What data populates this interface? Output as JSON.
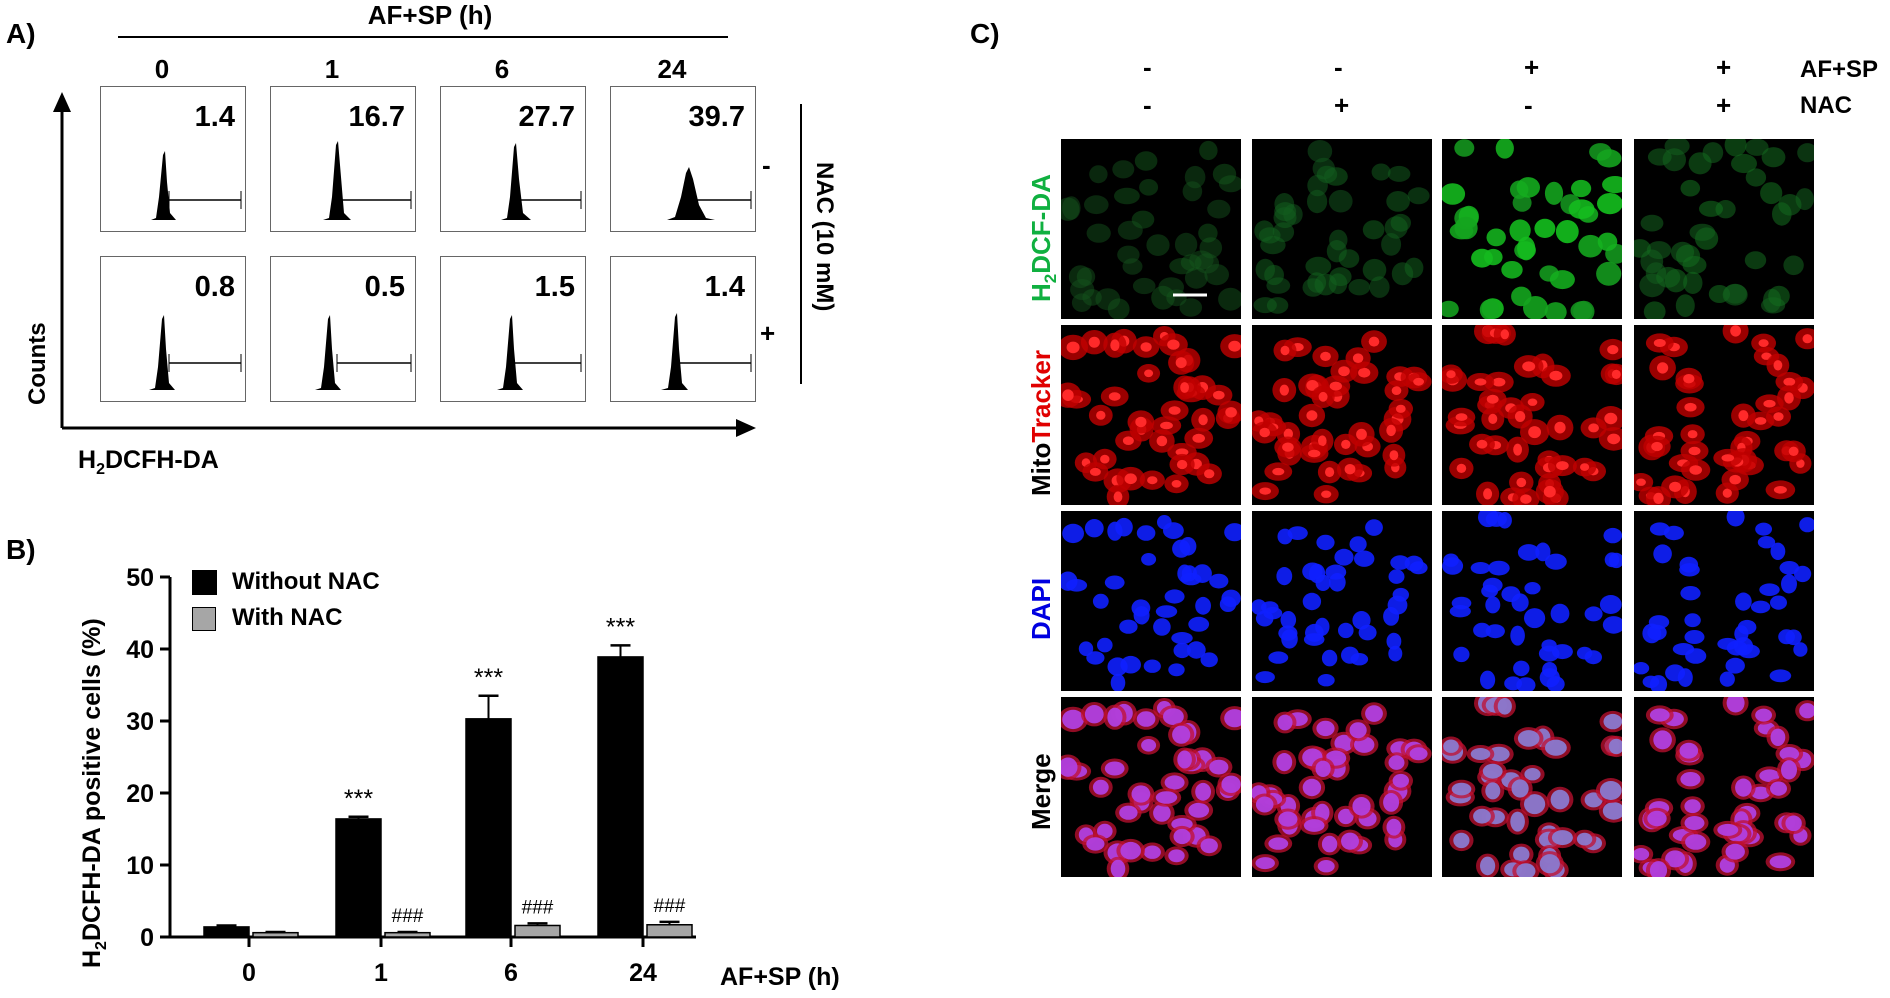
{
  "panel_a": {
    "label": "A)",
    "header": "AF+SP (h)",
    "times": [
      "0",
      "1",
      "6",
      "24"
    ],
    "y_axis_label": "Counts",
    "x_axis_label_main": "H",
    "x_axis_label_sub": "2",
    "x_axis_label_rest": "DCFH-DA",
    "row_signs": [
      "-",
      "+"
    ],
    "side_label": "NAC (10 mM)",
    "values_without_nac": [
      "1.4",
      "16.7",
      "27.7",
      "39.7"
    ],
    "values_with_nac": [
      "0.8",
      "0.5",
      "1.5",
      "1.4"
    ]
  },
  "panel_b": {
    "label": "B)",
    "legend": [
      "Without NAC",
      "With NAC"
    ],
    "ylabel_main": "H",
    "ylabel_sub": "2",
    "ylabel_rest": "DCFH-DA positive cells (%)",
    "xlabel": "AF+SP (h)",
    "significance_without": [
      "",
      "***",
      "***",
      "***"
    ],
    "significance_with": [
      "",
      "###",
      "###",
      "###"
    ]
  },
  "chart_data": {
    "type": "bar",
    "categories": [
      "0",
      "1",
      "6",
      "24"
    ],
    "series": [
      {
        "name": "Without NAC",
        "values": [
          1.4,
          16.4,
          30.3,
          38.9
        ],
        "errors": [
          0.2,
          0.3,
          3.2,
          1.6
        ],
        "color": "#000000"
      },
      {
        "name": "With NAC",
        "values": [
          0.6,
          0.6,
          1.6,
          1.7
        ],
        "errors": [
          0.1,
          0.1,
          0.3,
          0.4
        ],
        "color": "#a6a6a6"
      }
    ],
    "xlabel": "AF+SP (h)",
    "ylabel": "H2DCFH-DA positive cells (%)",
    "ylim": [
      0,
      50
    ],
    "yticks": [
      0,
      10,
      20,
      30,
      40,
      50
    ]
  },
  "panel_c": {
    "label": "C)",
    "row_labels": [
      "AF+SP",
      "NAC"
    ],
    "af_sp_signs": [
      "-",
      "-",
      "+",
      "+"
    ],
    "nac_signs": [
      "-",
      "+",
      "-",
      "+"
    ],
    "channels": [
      {
        "name": "H2DCF-DA",
        "parts": [
          "H",
          "2",
          "DCF-DA"
        ],
        "color": "#10b040"
      },
      {
        "name": "MitoTracker",
        "parts": [
          "Mito",
          "Tracker"
        ],
        "color": "#e00000"
      },
      {
        "name": "DAPI",
        "parts": [
          "DAPI"
        ],
        "color": "#0000e0"
      },
      {
        "name": "Merge",
        "parts": [
          "Merge"
        ],
        "color": "#000000"
      }
    ]
  }
}
